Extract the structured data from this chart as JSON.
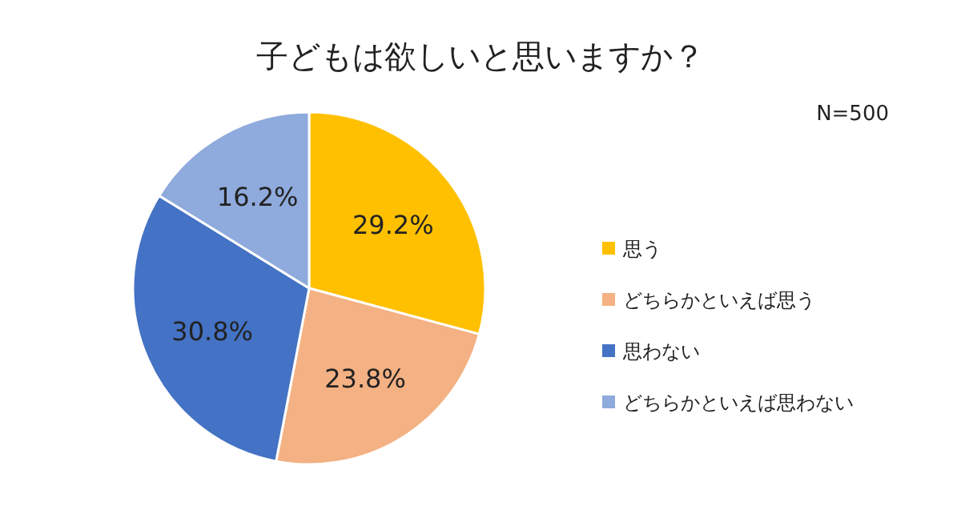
{
  "chart_data": {
    "type": "pie",
    "title": "子どもは欲しいと思いますか？",
    "categories": [
      "思う",
      "どちらかといえば思う",
      "思わない",
      "どちらかといえば思わない"
    ],
    "values": [
      29.2,
      23.8,
      30.8,
      16.2
    ],
    "value_labels": [
      "29.2%",
      "23.8%",
      "30.8%",
      "16.2%"
    ],
    "colors": [
      "#ffc000",
      "#f4b183",
      "#4472c4",
      "#8faadc"
    ],
    "annotations": [
      "N=500"
    ],
    "legend": "right"
  }
}
